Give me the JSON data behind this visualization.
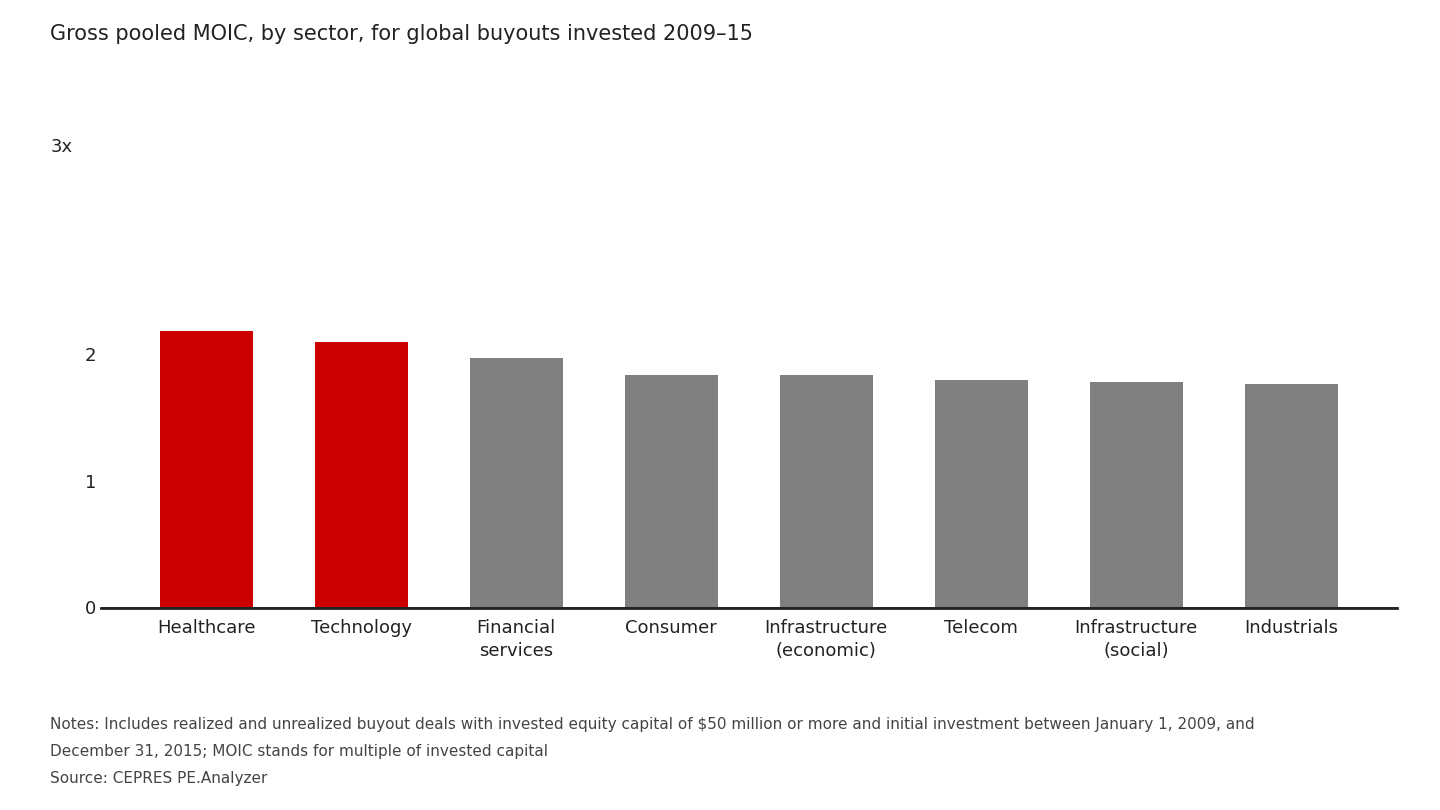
{
  "title": "Gross pooled MOIC, by sector, for global buyouts invested 2009–15",
  "categories": [
    "Healthcare",
    "Technology",
    "Financial\nservices",
    "Consumer",
    "Infrastructure\n(economic)",
    "Telecom",
    "Infrastructure\n(social)",
    "Industrials"
  ],
  "values": [
    2.18,
    2.09,
    1.97,
    1.83,
    1.83,
    1.79,
    1.78,
    1.76
  ],
  "bar_colors": [
    "#cc0000",
    "#cc0000",
    "#808080",
    "#808080",
    "#808080",
    "#808080",
    "#808080",
    "#808080"
  ],
  "ylim": [
    0,
    3.0
  ],
  "notes_line1": "Notes: Includes realized and unrealized buyout deals with invested equity capital of $50 million or more and initial investment between January 1, 2009, and",
  "notes_line2": "December 31, 2015; MOIC stands for multiple of invested capital",
  "source": "Source: CEPRES PE.Analyzer",
  "background_color": "#ffffff",
  "title_fontsize": 15,
  "tick_fontsize": 13,
  "notes_fontsize": 11,
  "bar_width": 0.6
}
